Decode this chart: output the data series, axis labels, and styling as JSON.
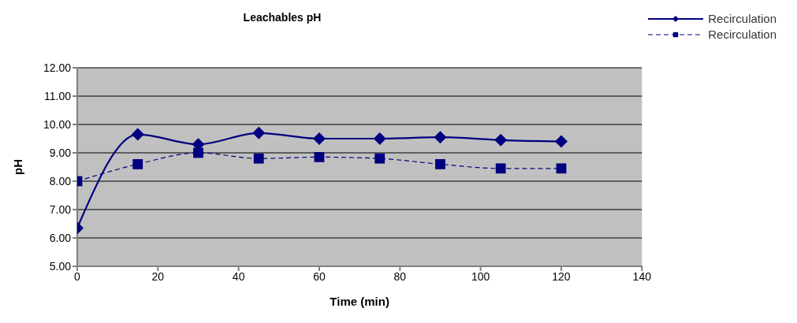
{
  "chart_data": {
    "type": "line",
    "title": "Leachables pH",
    "xlabel": "Time (min)",
    "ylabel": "pH",
    "x": [
      0,
      15,
      30,
      45,
      60,
      75,
      90,
      105,
      120
    ],
    "series": [
      {
        "name": "Recirculation",
        "color": "#000080",
        "marker": "diamond",
        "line_style": "solid",
        "values": [
          6.35,
          9.65,
          9.3,
          9.7,
          9.5,
          9.5,
          9.55,
          9.45,
          9.4
        ]
      },
      {
        "name": "Recirculation",
        "color": "#000080",
        "marker": "square",
        "line_style": "dashed",
        "values": [
          8.0,
          8.6,
          9.0,
          8.8,
          8.85,
          8.8,
          8.6,
          8.45,
          8.45
        ]
      }
    ],
    "xlim": [
      0,
      140
    ],
    "xticks": [
      0,
      20,
      40,
      60,
      80,
      100,
      120,
      140
    ],
    "ylim": [
      5,
      12
    ],
    "yticks": [
      {
        "value": 5,
        "label": "5.00"
      },
      {
        "value": 6,
        "label": "6.00"
      },
      {
        "value": 7,
        "label": "7.00"
      },
      {
        "value": 8,
        "label": "8.00"
      },
      {
        "value": 9,
        "label": "9.00"
      },
      {
        "value": 10,
        "label": "10.00"
      },
      {
        "value": 11,
        "label": "11.00"
      },
      {
        "value": 12,
        "label": "12.00"
      }
    ],
    "grid": "y",
    "legend": "top right"
  }
}
